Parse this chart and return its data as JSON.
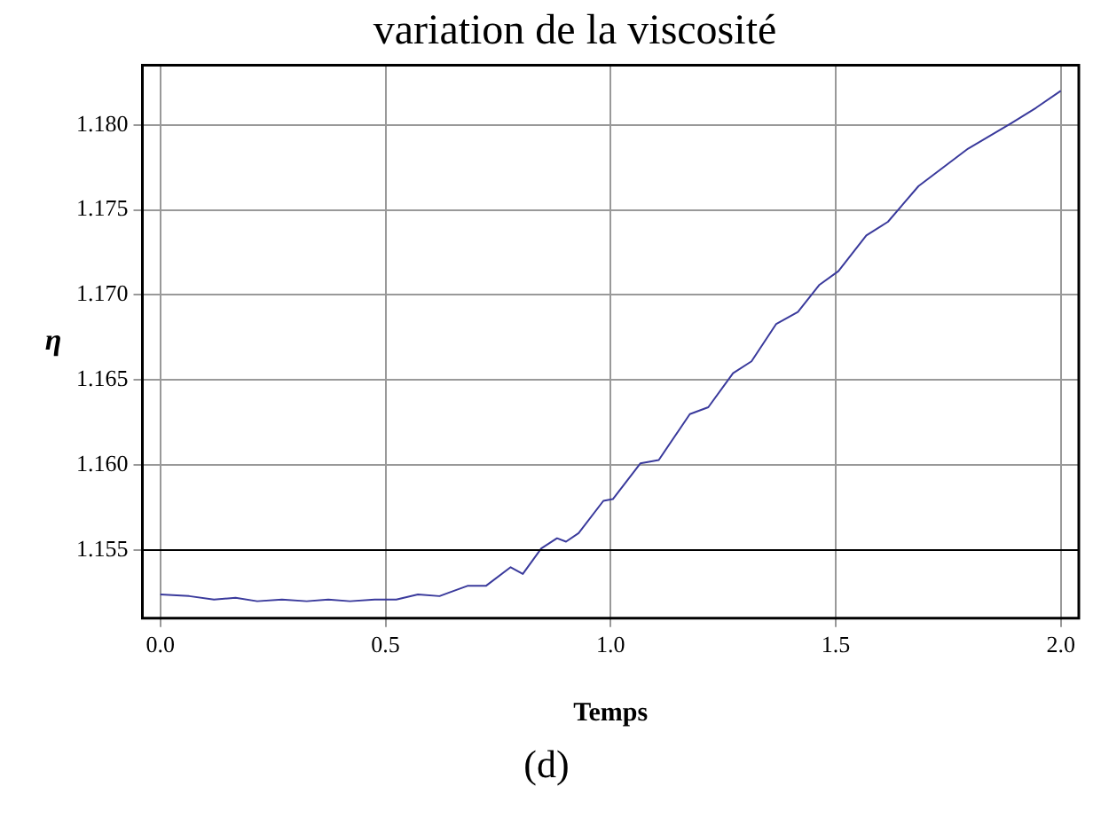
{
  "chart_data": {
    "type": "line",
    "title": "variation de la viscosité",
    "xlabel": "Temps",
    "ylabel": "η",
    "annotations": [
      "(d)"
    ],
    "x": [
      0,
      0.064,
      0.119,
      0.167,
      0.215,
      0.27,
      0.325,
      0.373,
      0.421,
      0.476,
      0.524,
      0.572,
      0.62,
      0.682,
      0.723,
      0.778,
      0.805,
      0.846,
      0.881,
      0.901,
      0.929,
      0.984,
      1.005,
      1.066,
      1.107,
      1.176,
      1.217,
      1.272,
      1.313,
      1.368,
      1.416,
      1.464,
      1.506,
      1.568,
      1.616,
      1.684,
      1.794,
      1.89,
      1.945,
      2.0
    ],
    "series": [
      {
        "color": "#3a3a9c",
        "values": [
          1.1524,
          1.1523,
          1.1521,
          1.1522,
          1.152,
          1.1521,
          1.152,
          1.1521,
          1.152,
          1.1521,
          1.1521,
          1.1524,
          1.1523,
          1.1529,
          1.1529,
          1.154,
          1.1536,
          1.1551,
          1.1557,
          1.1555,
          1.156,
          1.1579,
          1.158,
          1.1601,
          1.1603,
          1.163,
          1.1634,
          1.1654,
          1.1661,
          1.1683,
          1.169,
          1.1706,
          1.1714,
          1.1735,
          1.1743,
          1.1764,
          1.1786,
          1.1801,
          1.181,
          1.182
        ]
      }
    ],
    "xlim": [
      -0.04,
      2.04
    ],
    "ylim": [
      1.151,
      1.1835
    ],
    "xticks": [
      {
        "value": 0,
        "label": "0.0"
      },
      {
        "value": 0.5,
        "label": "0.5"
      },
      {
        "value": 1,
        "label": "1.0"
      },
      {
        "value": 1.5,
        "label": "1.5"
      },
      {
        "value": 2,
        "label": "2.0"
      }
    ],
    "yticks": [
      1.155,
      {
        "value": 1.16,
        "label": "1.160"
      },
      1.165,
      {
        "value": 1.17,
        "label": "1.170"
      },
      1.175,
      {
        "value": 1.18,
        "label": "1.180"
      }
    ],
    "ref_lines": [
      {
        "axis": "y",
        "value": 1.155,
        "color": "#000000"
      }
    ],
    "grid": true,
    "legend": false,
    "marker": "none",
    "line_style": "solid"
  }
}
